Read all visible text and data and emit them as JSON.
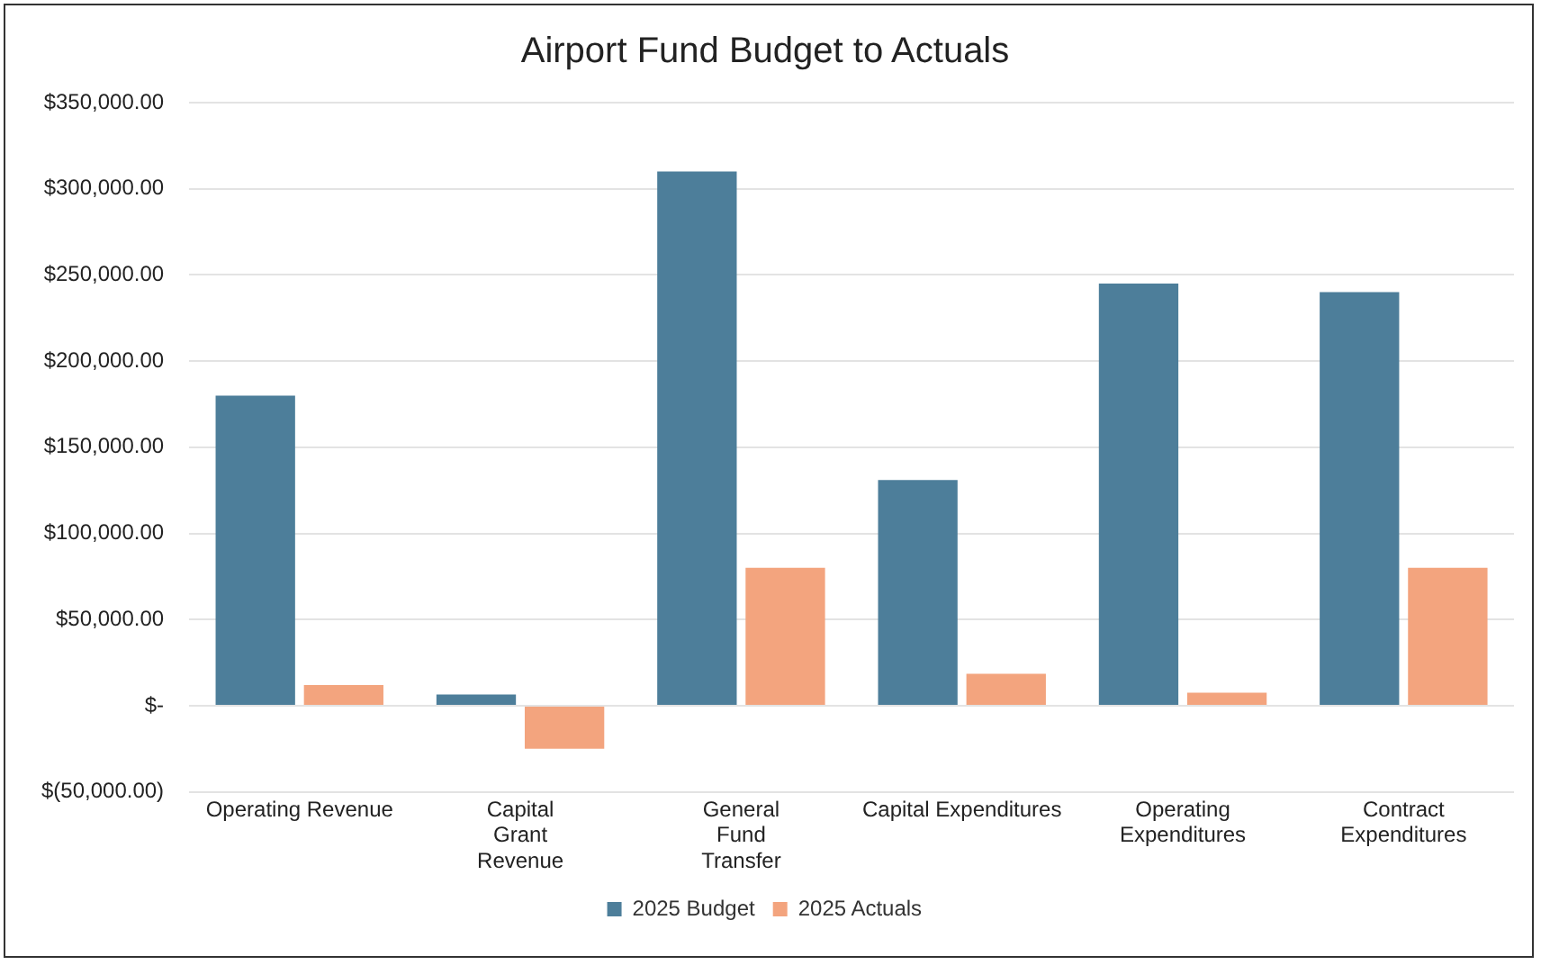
{
  "chart_data": {
    "type": "bar",
    "title": "Airport Fund Budget to Actuals",
    "categories": [
      "Operating Revenue",
      "Capital Grant Revenue",
      "General Fund Transfer",
      "Capital Expenditures",
      "Operating Expenditures",
      "Contract Expenditures"
    ],
    "series": [
      {
        "name": "2025 Budget",
        "color": "#4d7e9a",
        "values": [
          180000,
          6500,
          310000,
          131000,
          245000,
          240000
        ]
      },
      {
        "name": "2025 Actuals",
        "color": "#f3a47e",
        "values": [
          12000,
          -25000,
          80000,
          18500,
          7500,
          80000
        ]
      }
    ],
    "ylim": [
      -50000,
      350000
    ],
    "yticks": [
      {
        "value": -50000,
        "label": "$(50,000.00)"
      },
      {
        "value": 0,
        "label": "$-"
      },
      {
        "value": 50000,
        "label": "$50,000.00"
      },
      {
        "value": 100000,
        "label": "$100,000.00"
      },
      {
        "value": 150000,
        "label": "$150,000.00"
      },
      {
        "value": 200000,
        "label": "$200,000.00"
      },
      {
        "value": 250000,
        "label": "$250,000.00"
      },
      {
        "value": 300000,
        "label": "$300,000.00"
      },
      {
        "value": 350000,
        "label": "$350,000.00"
      }
    ],
    "grid": "y",
    "legend": "bottom"
  }
}
